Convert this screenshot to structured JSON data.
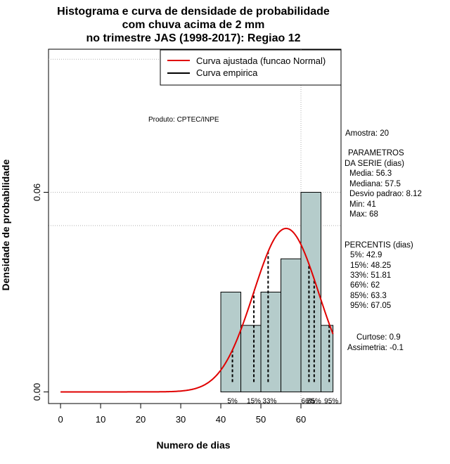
{
  "chart_data": {
    "type": "bar",
    "title": [
      "Histograma e curva de densidade de probabilidade",
      "com chuva acima de 2 mm",
      "no trimestre JAS (1998-2017): Regiao 12"
    ],
    "xlabel": "Numero de dias",
    "ylabel": "Densidade de probabilidade",
    "xlim": [
      -3,
      70
    ],
    "ylim": [
      -0.0035,
      0.103
    ],
    "x_ticks": [
      0,
      10,
      20,
      30,
      40,
      50,
      60
    ],
    "y_ticks": [
      0.0,
      0.06
    ],
    "y_tick_labels": [
      "0.00",
      "0.06"
    ],
    "grid": {
      "x": [
        60
      ],
      "y": [
        0.06
      ],
      "dotted": true
    },
    "histogram": {
      "bin_edges": [
        40,
        45,
        50,
        55,
        60,
        65,
        70
      ],
      "densities": [
        0.03,
        0.02,
        0.03,
        0.04,
        0.06,
        0.02
      ],
      "color": "#b5cccb"
    },
    "normal_curve": {
      "name": "Curva ajustada (funcao Normal)",
      "mean": 56.3,
      "sd": 8.12,
      "x_from": 0,
      "x_to": 68,
      "color": "#e00000"
    },
    "empirical_curve": {
      "name": "Curva empirica",
      "color": "#000000"
    },
    "percentiles": [
      {
        "label": "5%",
        "value": 42.9
      },
      {
        "label": "15%",
        "value": 48.25
      },
      {
        "label": "33%",
        "value": 51.81
      },
      {
        "label": "66%",
        "value": 62
      },
      {
        "label": "85%",
        "value": 63.3
      },
      {
        "label": "95%",
        "value": 67.05
      }
    ],
    "legend": "top-right"
  },
  "product_label": "Produto: CPTEC/INPE",
  "sidebar": {
    "sample": "Amostra: 20",
    "params_heading_1": "PARAMETROS",
    "params_heading_2": "DA SERIE (dias)",
    "media": "Media: 56.3",
    "mediana": "Mediana: 57.5",
    "desvio": "Desvio padrao: 8.12",
    "min": "Min: 41",
    "max": "Max: 68",
    "percentis_heading": "PERCENTIS (dias)",
    "p5": "5%: 42.9",
    "p15": "15%: 48.25",
    "p33": "33%: 51.81",
    "p66": "66%: 62",
    "p85": "85%: 63.3",
    "p95": "95%: 67.05",
    "curtose": "Curtose: 0.9",
    "assimetria": "Assimetria: -0.1"
  }
}
